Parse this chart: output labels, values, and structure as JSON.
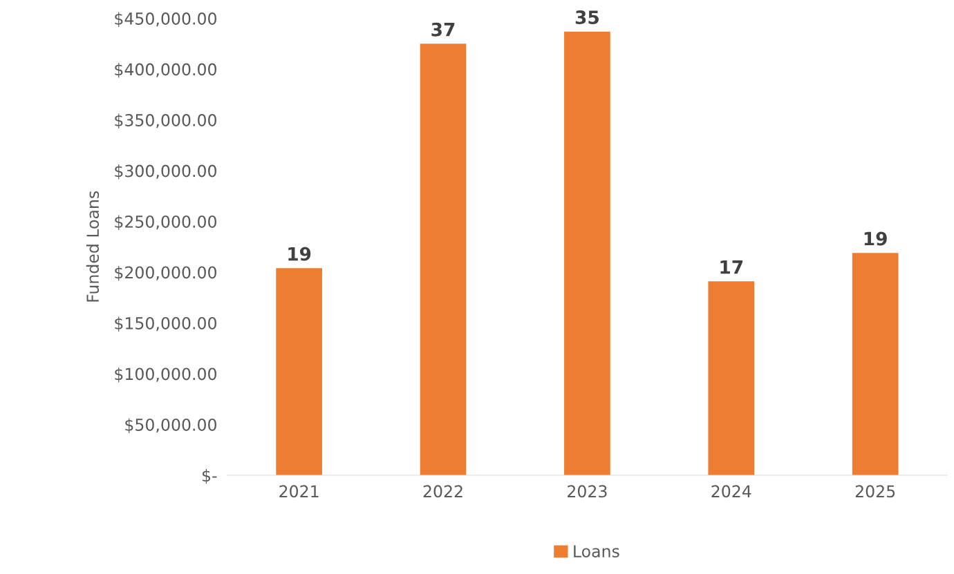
{
  "chart_data": {
    "type": "bar",
    "ylabel": "Funded Loans",
    "categories": [
      "2021",
      "2022",
      "2023",
      "2024",
      "2025"
    ],
    "series": [
      {
        "name": "Loans",
        "color": "#ed7d31",
        "values": [
          204000,
          425000,
          437000,
          191000,
          219000
        ]
      }
    ],
    "annotations": [
      {
        "text": "19",
        "x": "2021",
        "y": 204000
      },
      {
        "text": "37",
        "x": "2022",
        "y": 425000
      },
      {
        "text": "35",
        "x": "2023",
        "y": 437000
      },
      {
        "text": "17",
        "x": "2024",
        "y": 191000
      },
      {
        "text": "19",
        "x": "2025",
        "y": 219000
      }
    ],
    "ylim": [
      0,
      450000
    ],
    "yticks": [
      {
        "value": 0,
        "label": "$-"
      },
      {
        "value": 50000,
        "label": "$50,000.00"
      },
      {
        "value": 100000,
        "label": "$100,000.00"
      },
      {
        "value": 150000,
        "label": "$150,000.00"
      },
      {
        "value": 200000,
        "label": "$200,000.00"
      },
      {
        "value": 250000,
        "label": "$250,000.00"
      },
      {
        "value": 300000,
        "label": "$300,000.00"
      },
      {
        "value": 350000,
        "label": "$350,000.00"
      },
      {
        "value": 400000,
        "label": "$400,000.00"
      },
      {
        "value": 450000,
        "label": "$450,000.00"
      }
    ],
    "grid": false,
    "legend": "bottom"
  }
}
